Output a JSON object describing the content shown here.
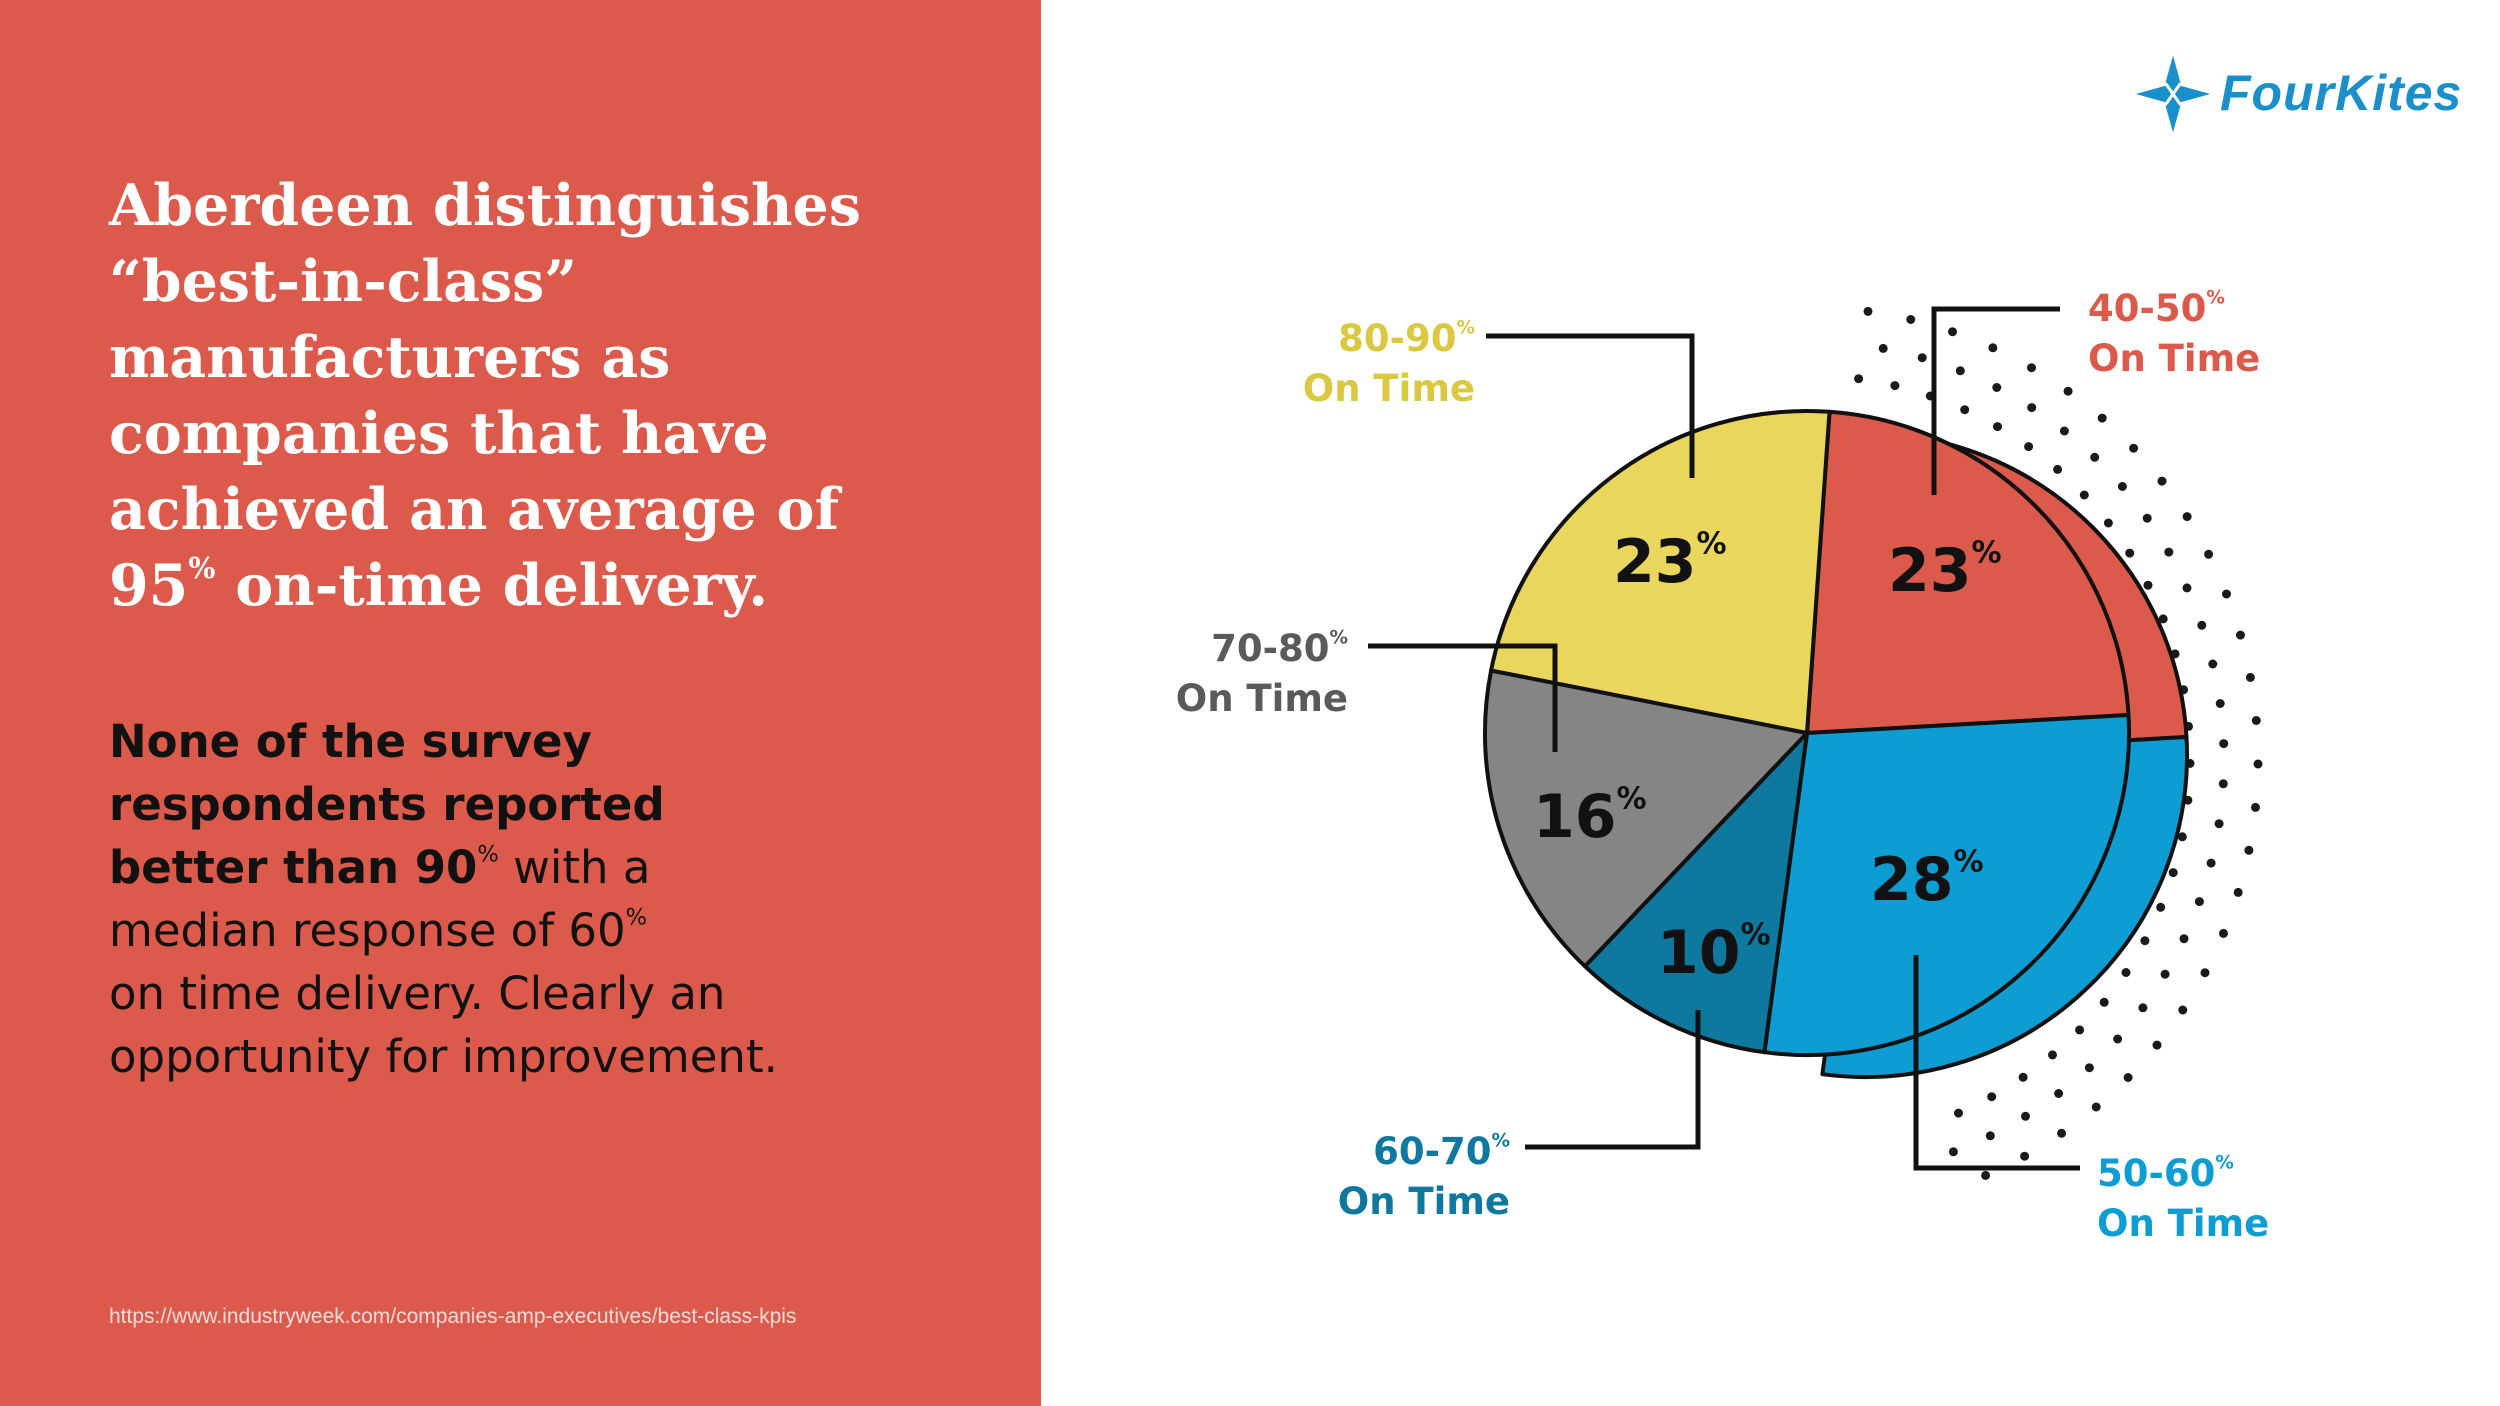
{
  "headline": {
    "line1": "Aberdeen distinguishes",
    "line2": "“best-in-class”",
    "line3": "manufacturers as",
    "line4": "companies that have",
    "line5": "achieved an average of",
    "line6_num": "95",
    "line6_sup": "%",
    "line6_rest": " on-time delivery."
  },
  "body": {
    "bold_1": "None of the survey",
    "bold_2": "respondents reported",
    "bold_3": "better than 90",
    "sup_1": "%",
    "text_1": " with a",
    "text_2": "median response of 60",
    "sup_2": "%",
    "text_3": "on time delivery. Clearly an",
    "text_4": "opportunity for improvement."
  },
  "source_url": "https://www.industryweek.com/companies-amp-executives/best-class-kpis",
  "logo": {
    "name": "FourKites",
    "icon": "kite-star-icon",
    "color": "#1a8fc9"
  },
  "colors": {
    "panel": "#dc5a4c",
    "red": "#dc5a4c",
    "yellow": "#e9d65c",
    "gray": "#858585",
    "dark_blue": "#0f789f",
    "blue": "#0d9dd2"
  },
  "chart_data": {
    "type": "pie",
    "title": "",
    "slices": [
      {
        "name": "40-50% On Time",
        "range": "40-50",
        "suffix": "On Time",
        "value": 23,
        "color": "#dc5a4c"
      },
      {
        "name": "50-60% On Time",
        "range": "50-60",
        "suffix": "On Time",
        "value": 28,
        "color": "#0d9dd2"
      },
      {
        "name": "60-70% On Time",
        "range": "60-70",
        "suffix": "On Time",
        "value": 10,
        "color": "#0f789f"
      },
      {
        "name": "70-80% On Time",
        "range": "70-80",
        "suffix": "On Time",
        "value": 16,
        "color": "#858585"
      },
      {
        "name": "80-90% On Time",
        "range": "80-90",
        "suffix": "On Time",
        "value": 23,
        "color": "#e9d65c"
      }
    ],
    "value_suffix": "%"
  }
}
